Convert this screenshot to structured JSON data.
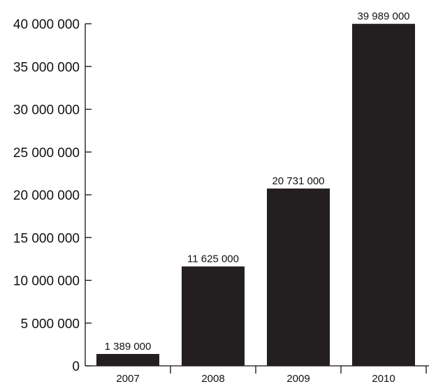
{
  "chart_data": {
    "type": "bar",
    "title": "",
    "xlabel": "",
    "ylabel": "",
    "categories": [
      "2007",
      "2008",
      "2009",
      "2010"
    ],
    "values": [
      1389000,
      11625000,
      20731000,
      39989000
    ],
    "value_labels": [
      "1 389 000",
      "11 625 000",
      "20 731 000",
      "39 989 000"
    ],
    "ylim": [
      0,
      40000000
    ],
    "yticks": [
      0,
      5000000,
      10000000,
      15000000,
      20000000,
      25000000,
      30000000,
      35000000,
      40000000
    ],
    "ytick_labels": [
      "0",
      "5 000 000",
      "10 000 000",
      "15 000 000",
      "20 000 000",
      "25 000 000",
      "30 000 000",
      "35 000 000",
      "40 000 000"
    ],
    "grid": false,
    "legend": "none",
    "bar_color": "#231f20"
  }
}
